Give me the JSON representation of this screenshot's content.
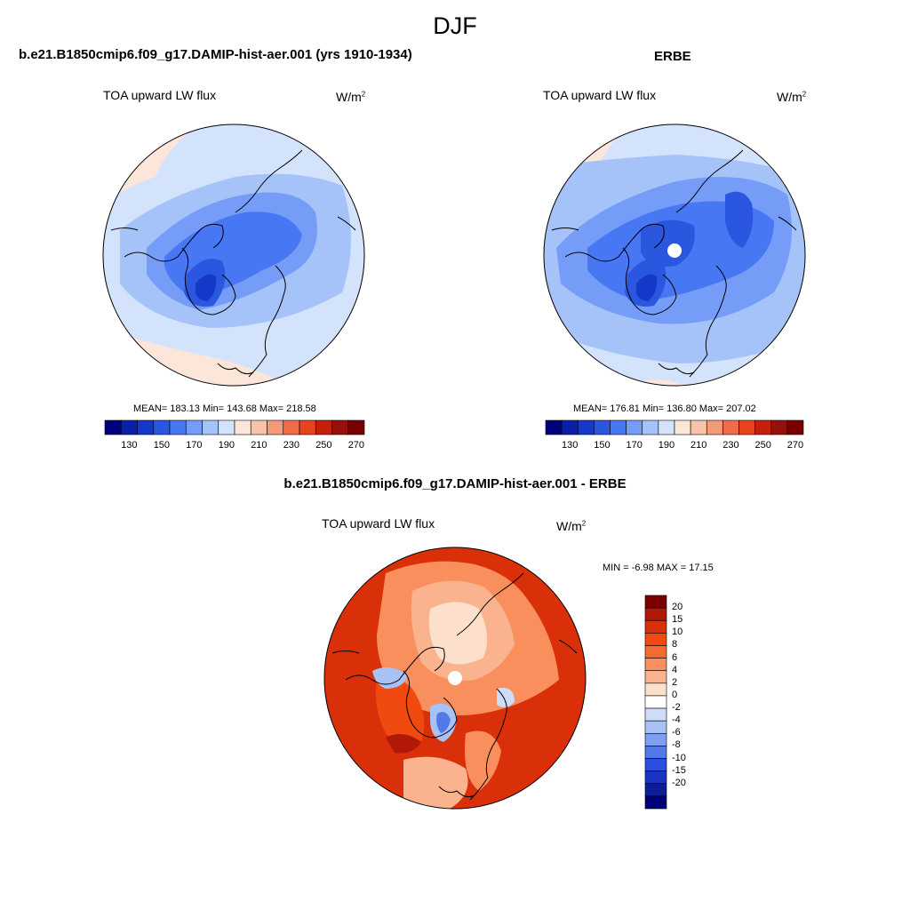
{
  "figure": {
    "title": "DJF",
    "colors": {
      "coastline": "#000000",
      "missing": "#ffffff"
    }
  },
  "panels": [
    {
      "id": "model",
      "title": "b.e21.B1850cmip6.f09_g17.DAMIP-hist-aer.001 (yrs 1910-1934)",
      "variable": "TOA upward LW flux",
      "units": "W/m",
      "units_sup": "2",
      "stats": "MEAN= 183.13  Min= 143.68  Max= 218.58",
      "colorbar": {
        "orientation": "horizontal",
        "labels": [
          "130",
          "150",
          "170",
          "190",
          "210",
          "230",
          "250",
          "270"
        ],
        "colors": [
          "#00007a",
          "#0a1fa6",
          "#1438c8",
          "#2a56e0",
          "#4777f2",
          "#759df7",
          "#a6c3f9",
          "#d3e3fb",
          "#fce6da",
          "#f8c3aa",
          "#f39a78",
          "#ee6e4b",
          "#e6431e",
          "#c4200c",
          "#96110a",
          "#7a0000"
        ]
      }
    },
    {
      "id": "obs",
      "title": "ERBE",
      "variable": "TOA upward LW flux",
      "units": "W/m",
      "units_sup": "2",
      "stats": "MEAN= 176.81  Min= 136.80  Max= 207.02",
      "colorbar": {
        "orientation": "horizontal",
        "labels": [
          "130",
          "150",
          "170",
          "190",
          "210",
          "230",
          "250",
          "270"
        ],
        "colors": [
          "#00007a",
          "#0a1fa6",
          "#1438c8",
          "#2a56e0",
          "#4777f2",
          "#759df7",
          "#a6c3f9",
          "#d3e3fb",
          "#fce6da",
          "#f8c3aa",
          "#f39a78",
          "#ee6e4b",
          "#e6431e",
          "#c4200c",
          "#96110a",
          "#7a0000"
        ]
      }
    },
    {
      "id": "diff",
      "title": "b.e21.B1850cmip6.f09_g17.DAMIP-hist-aer.001 - ERBE",
      "variable": "TOA upward LW flux",
      "units": "W/m",
      "units_sup": "2",
      "stats": "MIN =  -6.98 MAX =  17.15",
      "colorbar": {
        "orientation": "vertical",
        "labels": [
          "20",
          "15",
          "10",
          "8",
          "6",
          "4",
          "2",
          "0",
          "-2",
          "-4",
          "-6",
          "-8",
          "-10",
          "-15",
          "-20"
        ],
        "colors": [
          "#7a0000",
          "#b01808",
          "#d9300a",
          "#f04a10",
          "#f46a30",
          "#f88f5c",
          "#fbb38f",
          "#fde0cc",
          "#ffffff",
          "#cfdcf8",
          "#a8c2f5",
          "#7e9ff0",
          "#5278ea",
          "#2a4fe0",
          "#1a33c0",
          "#0d1c98",
          "#00007a"
        ]
      }
    }
  ]
}
